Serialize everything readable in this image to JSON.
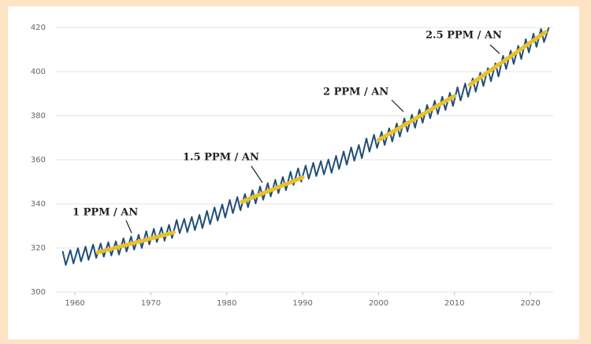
{
  "chart_data": {
    "type": "line",
    "xlim": [
      1957.5,
      2023
    ],
    "xticks": [
      1960,
      1970,
      1980,
      1990,
      2000,
      2010,
      2020
    ],
    "ylim": [
      300,
      420
    ],
    "yticks": [
      300,
      320,
      340,
      360,
      380,
      400,
      420
    ],
    "grid": true,
    "annotations": [
      "1 PPM / AN",
      "1.5 PPM / AN",
      "2 PPM / AN",
      "2.5 PPM / AN"
    ],
    "series": [
      {
        "color": "#1f4e79",
        "width": 2,
        "x": [
          1958.4,
          1958.8,
          1959.4,
          1959.8,
          1960.4,
          1960.8,
          1961.4,
          1961.8,
          1962.4,
          1962.8,
          1963.4,
          1963.8,
          1964.4,
          1964.8,
          1965.4,
          1965.8,
          1966.4,
          1966.8,
          1967.4,
          1967.8,
          1968.4,
          1968.8,
          1969.4,
          1969.8,
          1970.4,
          1970.8,
          1971.4,
          1971.8,
          1972.4,
          1972.8,
          1973.4,
          1973.8,
          1974.4,
          1974.8,
          1975.4,
          1975.8,
          1976.4,
          1976.8,
          1977.4,
          1977.8,
          1978.4,
          1978.8,
          1979.4,
          1979.8,
          1980.4,
          1980.8,
          1981.4,
          1981.8,
          1982.4,
          1982.8,
          1983.4,
          1983.8,
          1984.4,
          1984.8,
          1985.4,
          1985.8,
          1986.4,
          1986.8,
          1987.4,
          1987.8,
          1988.4,
          1988.8,
          1989.4,
          1989.8,
          1990.4,
          1990.8,
          1991.4,
          1991.8,
          1992.4,
          1992.8,
          1993.4,
          1993.8,
          1994.4,
          1994.8,
          1995.4,
          1995.8,
          1996.4,
          1996.8,
          1997.4,
          1997.8,
          1998.4,
          1998.8,
          1999.4,
          1999.8,
          2000.4,
          2000.8,
          2001.4,
          2001.8,
          2002.4,
          2002.8,
          2003.4,
          2003.8,
          2004.4,
          2004.8,
          2005.4,
          2005.8,
          2006.4,
          2006.8,
          2007.4,
          2007.8,
          2008.4,
          2008.8,
          2009.4,
          2009.8,
          2010.4,
          2010.8,
          2011.4,
          2011.8,
          2012.4,
          2012.8,
          2013.4,
          2013.8,
          2014.4,
          2014.8,
          2015.4,
          2015.8,
          2016.4,
          2016.8,
          2017.4,
          2017.8,
          2018.4,
          2018.8,
          2019.4,
          2019.8,
          2020.4,
          2020.8,
          2021.4,
          2021.8,
          2022.4
        ],
        "values": [
          318.3,
          312.3,
          319.0,
          313.0,
          319.9,
          313.9,
          320.6,
          314.6,
          321.5,
          315.5,
          322.0,
          316.0,
          322.6,
          316.6,
          323.0,
          317.0,
          324.4,
          318.4,
          325.2,
          319.2,
          326.0,
          320.0,
          327.6,
          321.6,
          328.7,
          322.7,
          329.3,
          323.3,
          330.5,
          324.5,
          332.7,
          326.7,
          333.2,
          327.2,
          334.1,
          328.1,
          335.0,
          329.0,
          336.8,
          330.8,
          338.4,
          332.4,
          339.8,
          333.8,
          341.8,
          335.8,
          343.1,
          337.1,
          344.5,
          338.5,
          346.2,
          340.2,
          347.9,
          341.9,
          349.4,
          343.4,
          350.9,
          344.9,
          352.2,
          346.2,
          354.6,
          348.6,
          356.1,
          350.1,
          357.4,
          351.4,
          358.6,
          352.6,
          359.4,
          353.4,
          360.1,
          354.1,
          361.8,
          355.8,
          363.8,
          357.8,
          365.6,
          359.6,
          366.7,
          360.7,
          369.7,
          363.7,
          371.4,
          365.4,
          372.7,
          366.7,
          374.3,
          368.3,
          376.5,
          370.5,
          378.8,
          372.8,
          380.5,
          374.5,
          382.8,
          376.8,
          384.9,
          378.9,
          386.8,
          380.8,
          388.6,
          382.6,
          390.4,
          384.4,
          392.9,
          386.9,
          394.6,
          388.6,
          396.9,
          390.9,
          399.5,
          393.5,
          401.6,
          395.6,
          403.8,
          397.8,
          407.2,
          401.2,
          409.5,
          403.5,
          411.7,
          405.7,
          414.7,
          408.7,
          417.2,
          411.2,
          419.4,
          413.4,
          419.8
        ]
      },
      {
        "color": "#e8c12a",
        "width": 5,
        "x": [
          1963,
          1973
        ],
        "values": [
          318,
          327
        ]
      },
      {
        "color": "#e8c12a",
        "width": 5,
        "x": [
          1982,
          1990
        ],
        "values": [
          341,
          352
        ]
      },
      {
        "color": "#e8c12a",
        "width": 5,
        "x": [
          2000,
          2010
        ],
        "values": [
          369,
          389
        ]
      },
      {
        "color": "#e8c12a",
        "width": 5,
        "x": [
          2012,
          2022
        ],
        "values": [
          394,
          418
        ]
      }
    ]
  }
}
